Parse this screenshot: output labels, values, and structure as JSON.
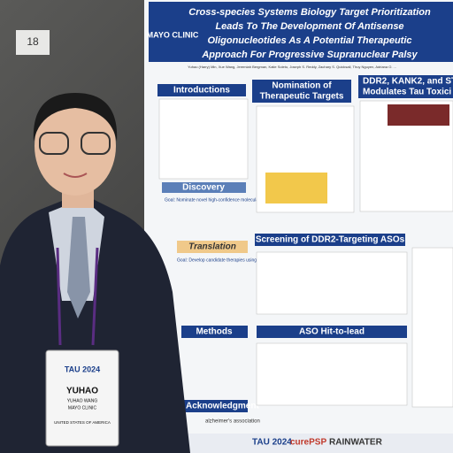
{
  "sign": "18",
  "poster": {
    "logo": "MAYO CLINIC",
    "title_lines": [
      "Cross-species Systems Biology Target Prioritization",
      "Leads To The Development Of Antisense",
      "Oligonucleotides As A Potential Therapeutic",
      "Approach For Progressive Supranuclear Palsy"
    ],
    "authors": "Yuhao (Harry) Min, Xue Wang, Jeremiah Bergman, Katie Soleto, Joseph S. Reddy, Zachary S. Quicksall, Thuy Nguyen, Adriana O. ...",
    "sections": {
      "introductions": "Introductions",
      "nomination": [
        "Nomination of",
        "Therapeutic Targets"
      ],
      "ddr2": [
        "DDR2, KANK2, and ST",
        "Modulates Tau Toxici"
      ],
      "discovery": "Discovery",
      "goal": "Goal: Nominate novel high-confidence molecular targets",
      "translation": "Translation",
      "goal2": "Goal: Develop candidate therapies using antisense oligonucleotides (ASO)",
      "methods": "Methods",
      "screening": "Screening of DDR2-Targeting ASOs",
      "hit": "ASO Hit-to-lead",
      "ack": "Acknowledgment",
      "alz": "alzheimer's association"
    },
    "footer": [
      "TAU 2024",
      "curePSP",
      "RAINWATER"
    ]
  },
  "badge": {
    "event": "TAU 2024",
    "first": "YUHAO",
    "full": "YUHAO WANG",
    "org": "MAYO CLINIC",
    "country": "UNITED STATES OF AMERICA"
  }
}
